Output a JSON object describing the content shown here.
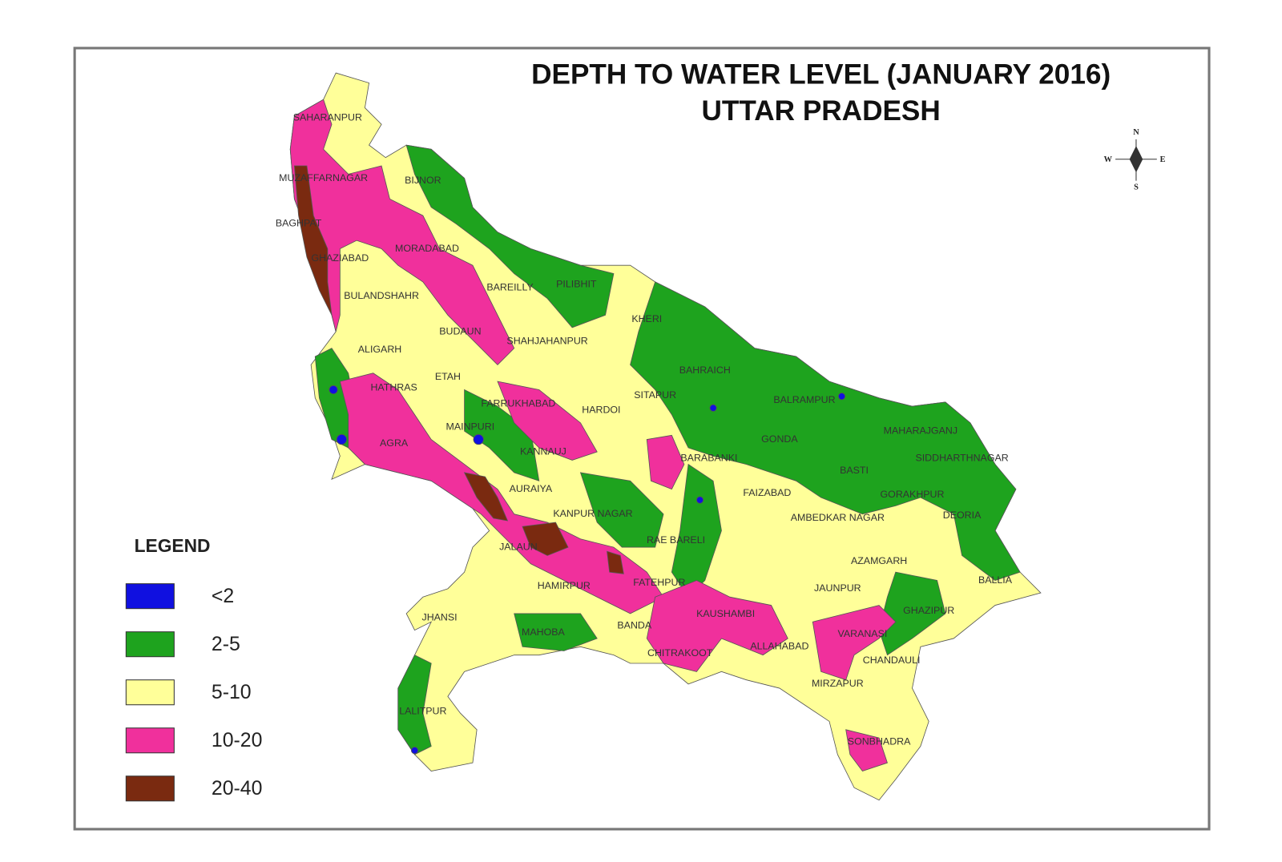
{
  "title": [
    "DEPTH TO WATER LEVEL (JANUARY 2016)",
    "UTTAR PRADESH"
  ],
  "compass": {
    "north": "N",
    "south": "S",
    "east": "E",
    "west": "W"
  },
  "legend": {
    "title": "LEGEND",
    "items": [
      {
        "label": "<2",
        "color": "#1010e0"
      },
      {
        "label": "2-5",
        "color": "#1ea31e"
      },
      {
        "label": "5-10",
        "color": "#ffff99"
      },
      {
        "label": "10-20",
        "color": "#f0309c"
      },
      {
        "label": "20-40",
        "color": "#7a2a10"
      }
    ]
  },
  "districts": [
    "SAHARANPUR",
    "MUZAFFARNAGAR",
    "BIJNOR",
    "BAGHPAT",
    "GHAZIABAD",
    "MORADABAD",
    "BULANDSHAHR",
    "BAREILLY",
    "PILIBHIT",
    "BUDAUN",
    "SHAHJAHANPUR",
    "KHERI",
    "ALIGARH",
    "HATHRAS",
    "ETAH",
    "BAHRAICH",
    "SITAPUR",
    "BALRAMPUR",
    "FARRUKHABAD",
    "HARDOI",
    "MAHARAJGANJ",
    "GONDA",
    "MAINPURI",
    "AGRA",
    "KANNAUJ",
    "BARABANKI",
    "SIDDHARTHNAGAR",
    "BASTI",
    "AURAIYA",
    "FAIZABAD",
    "GORAKHPUR",
    "KANPUR NAGAR",
    "AMBEDKAR NAGAR",
    "DEORIA",
    "RAE BARELI",
    "JALAUN",
    "AZAMGARH",
    "BALLIA",
    "HAMIRPUR",
    "FATEHPUR",
    "JAUNPUR",
    "GHAZIPUR",
    "JHANSI",
    "KAUSHAMBI",
    "MAHOBA",
    "BANDA",
    "VARANASI",
    "ALLAHABAD",
    "CHITRAKOOT",
    "CHANDAULI",
    "MIRZAPUR",
    "LALITPUR",
    "SONBHADRA"
  ]
}
